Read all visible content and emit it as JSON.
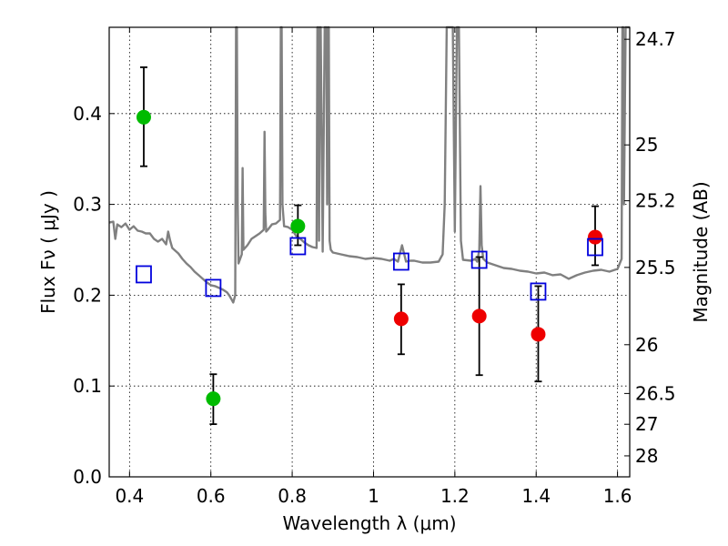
{
  "chart_data": {
    "type": "scatter",
    "xlabel": "Wavelength  λ (μm)",
    "ylabel": "Flux  Fν  ( μJy )",
    "ylabel_right": "Magnitude (AB)",
    "xlim": [
      0.35,
      1.63
    ],
    "ylim": [
      0.0,
      0.495
    ],
    "grid": true,
    "x_ticks": [
      0.4,
      0.6,
      0.8,
      1.0,
      1.2,
      1.4,
      1.6
    ],
    "x_tick_labels": [
      "0.4",
      "0.6",
      "0.8",
      "1",
      "1.2",
      "1.4",
      "1.6"
    ],
    "y_ticks": [
      0.0,
      0.1,
      0.2,
      0.3,
      0.4
    ],
    "y_tick_labels": [
      "0.0",
      "0.1",
      "0.2",
      "0.3",
      "0.4"
    ],
    "right_ticks": [
      {
        "label": "24.7",
        "flux": 0.4818
      },
      {
        "label": "25",
        "flux": 0.3655
      },
      {
        "label": "25.2",
        "flux": 0.304
      },
      {
        "label": "25.5",
        "flux": 0.2306
      },
      {
        "label": "26",
        "flux": 0.1455
      },
      {
        "label": "26.5",
        "flux": 0.0918
      },
      {
        "label": "27",
        "flux": 0.0579
      },
      {
        "label": "28",
        "flux": 0.0231
      }
    ],
    "series": [
      {
        "name": "green observed",
        "color": "#00bb00",
        "marker": "circle",
        "points": [
          {
            "x": 0.435,
            "y": 0.396,
            "err": [
              0.054,
              0.055
            ]
          },
          {
            "x": 0.606,
            "y": 0.086,
            "err": [
              0.028,
              0.027
            ]
          },
          {
            "x": 0.814,
            "y": 0.276,
            "err": [
              0.021,
              0.023
            ]
          }
        ]
      },
      {
        "name": "red observed",
        "color": "#ee0000",
        "marker": "circle",
        "points": [
          {
            "x": 1.068,
            "y": 0.174,
            "err": [
              0.039,
              0.038
            ]
          },
          {
            "x": 1.26,
            "y": 0.177,
            "err": [
              0.065,
              0.065
            ]
          },
          {
            "x": 1.405,
            "y": 0.157,
            "err": [
              0.052,
              0.053
            ]
          },
          {
            "x": 1.545,
            "y": 0.264,
            "err": [
              0.031,
              0.034
            ]
          }
        ]
      },
      {
        "name": "model bands",
        "color": "#0000dd",
        "marker": "open-square",
        "points": [
          {
            "x": 0.435,
            "y": 0.223
          },
          {
            "x": 0.606,
            "y": 0.208
          },
          {
            "x": 0.814,
            "y": 0.254
          },
          {
            "x": 1.068,
            "y": 0.237
          },
          {
            "x": 1.26,
            "y": 0.239
          },
          {
            "x": 1.405,
            "y": 0.204
          },
          {
            "x": 1.545,
            "y": 0.253
          }
        ]
      }
    ],
    "spectrum": {
      "name": "model spectrum",
      "color": "#808080",
      "x": [
        0.35,
        0.36,
        0.365,
        0.37,
        0.38,
        0.39,
        0.4,
        0.41,
        0.42,
        0.43,
        0.44,
        0.45,
        0.46,
        0.47,
        0.48,
        0.49,
        0.495,
        0.5,
        0.505,
        0.51,
        0.52,
        0.53,
        0.54,
        0.55,
        0.56,
        0.57,
        0.58,
        0.59,
        0.6,
        0.61,
        0.62,
        0.63,
        0.64,
        0.645,
        0.65,
        0.655,
        0.66,
        0.662,
        0.664,
        0.666,
        0.668,
        0.672,
        0.676,
        0.678,
        0.68,
        0.69,
        0.7,
        0.72,
        0.73,
        0.732,
        0.734,
        0.736,
        0.74,
        0.75,
        0.76,
        0.77,
        0.772,
        0.774,
        0.776,
        0.78,
        0.79,
        0.8,
        0.81,
        0.82,
        0.83,
        0.84,
        0.85,
        0.86,
        0.862,
        0.864,
        0.866,
        0.868,
        0.87,
        0.875,
        0.88,
        0.884,
        0.886,
        0.888,
        0.89,
        0.892,
        0.895,
        0.9,
        0.92,
        0.94,
        0.96,
        0.98,
        1.0,
        1.02,
        1.04,
        1.05,
        1.06,
        1.07,
        1.08,
        1.09,
        1.1,
        1.12,
        1.14,
        1.16,
        1.17,
        1.175,
        1.18,
        1.185,
        1.19,
        1.195,
        1.2,
        1.205,
        1.21,
        1.215,
        1.22,
        1.24,
        1.25,
        1.255,
        1.26,
        1.263,
        1.266,
        1.27,
        1.28,
        1.3,
        1.32,
        1.34,
        1.36,
        1.38,
        1.4,
        1.42,
        1.44,
        1.46,
        1.48,
        1.5,
        1.52,
        1.54,
        1.56,
        1.58,
        1.6,
        1.61,
        1.612,
        1.614,
        1.616,
        1.62,
        1.625,
        1.63
      ],
      "y": [
        0.28,
        0.281,
        0.262,
        0.278,
        0.275,
        0.279,
        0.272,
        0.276,
        0.271,
        0.27,
        0.268,
        0.268,
        0.262,
        0.259,
        0.262,
        0.256,
        0.27,
        0.26,
        0.252,
        0.25,
        0.246,
        0.24,
        0.235,
        0.231,
        0.226,
        0.222,
        0.218,
        0.214,
        0.211,
        0.21,
        0.208,
        0.206,
        0.203,
        0.2,
        0.196,
        0.192,
        0.2,
        0.495,
        0.495,
        0.3,
        0.235,
        0.24,
        0.245,
        0.34,
        0.25,
        0.255,
        0.262,
        0.268,
        0.272,
        0.38,
        0.29,
        0.27,
        0.272,
        0.278,
        0.279,
        0.283,
        0.495,
        0.495,
        0.3,
        0.276,
        0.275,
        0.272,
        0.265,
        0.262,
        0.258,
        0.255,
        0.253,
        0.252,
        0.495,
        0.495,
        0.26,
        0.495,
        0.495,
        0.248,
        0.495,
        0.495,
        0.3,
        0.495,
        0.495,
        0.26,
        0.25,
        0.247,
        0.245,
        0.243,
        0.242,
        0.24,
        0.241,
        0.24,
        0.238,
        0.24,
        0.237,
        0.255,
        0.237,
        0.238,
        0.238,
        0.236,
        0.236,
        0.237,
        0.245,
        0.3,
        0.495,
        0.495,
        0.495,
        0.495,
        0.27,
        0.495,
        0.495,
        0.26,
        0.239,
        0.238,
        0.24,
        0.237,
        0.25,
        0.32,
        0.255,
        0.24,
        0.236,
        0.233,
        0.23,
        0.229,
        0.227,
        0.226,
        0.224,
        0.225,
        0.222,
        0.223,
        0.218,
        0.222,
        0.225,
        0.227,
        0.228,
        0.226,
        0.229,
        0.24,
        0.495,
        0.495,
        0.3,
        0.495,
        0.495,
        0.495
      ]
    }
  }
}
